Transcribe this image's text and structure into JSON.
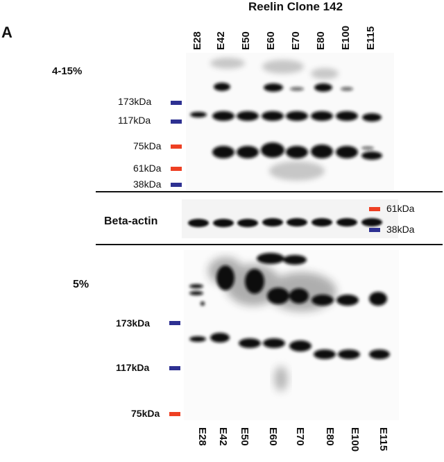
{
  "panel_letter": "A",
  "title": "Reelin Clone 142",
  "lanes": [
    "E28",
    "E42",
    "E50",
    "E60",
    "E70",
    "E80",
    "E100",
    "E115"
  ],
  "gels": {
    "gel1_label": "4-15%",
    "beta_actin_label": "Beta-actin",
    "gel2_label": "5%"
  },
  "markers_top": [
    {
      "label": "173kDa",
      "color": "#2e3192"
    },
    {
      "label": "117kDa",
      "color": "#2e3192"
    },
    {
      "label": "75kDa",
      "color": "#ee4023"
    },
    {
      "label": "61kDa",
      "color": "#ee4023"
    },
    {
      "label": "38kDa",
      "color": "#2e3192"
    }
  ],
  "markers_actin": [
    {
      "label": "61kDa",
      "color": "#ee4023"
    },
    {
      "label": "38kDa",
      "color": "#2e3192"
    }
  ],
  "markers_bottom": [
    {
      "label": "173kDa",
      "color": "#2e3192"
    },
    {
      "label": "117kDa",
      "color": "#2e3192"
    },
    {
      "label": "75kDa",
      "color": "#ee4023"
    }
  ],
  "colors": {
    "blue_marker": "#2e3192",
    "red_marker": "#ee4023",
    "band": "#111111"
  }
}
